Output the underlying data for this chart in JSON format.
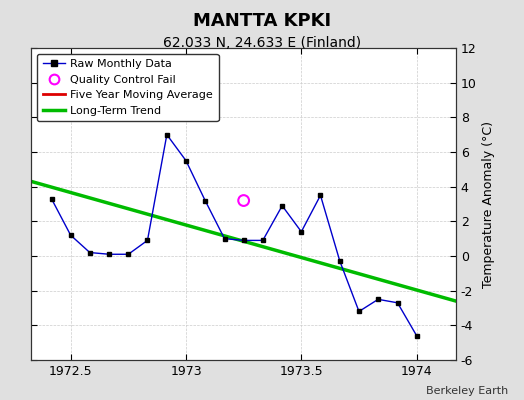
{
  "title": "MANTTA KPKI",
  "subtitle": "62.033 N, 24.633 E (Finland)",
  "watermark": "Berkeley Earth",
  "ylabel": "Temperature Anomaly (°C)",
  "xlim": [
    1972.33,
    1974.17
  ],
  "ylim": [
    -6,
    12
  ],
  "yticks": [
    -6,
    -4,
    -2,
    0,
    2,
    4,
    6,
    8,
    10,
    12
  ],
  "xticks": [
    1972.5,
    1973.0,
    1973.5,
    1974.0
  ],
  "xticklabels": [
    "1972.5",
    "1973",
    "1973.5",
    "1974"
  ],
  "background_color": "#e0e0e0",
  "plot_bg_color": "#ffffff",
  "raw_x": [
    1972.417,
    1972.5,
    1972.583,
    1972.667,
    1972.75,
    1972.833,
    1972.917,
    1973.0,
    1973.083,
    1973.167,
    1973.25,
    1973.333,
    1973.417,
    1973.5,
    1973.583,
    1973.667,
    1973.75,
    1973.833,
    1973.917,
    1974.0
  ],
  "raw_y": [
    3.3,
    1.2,
    0.2,
    0.1,
    0.1,
    0.9,
    7.0,
    5.5,
    3.2,
    1.0,
    0.9,
    0.9,
    2.9,
    1.4,
    3.5,
    -0.3,
    -3.2,
    -2.5,
    -2.7,
    -4.6
  ],
  "qc_fail_x": [
    1973.25
  ],
  "qc_fail_y": [
    3.2
  ],
  "trend_x": [
    1972.33,
    1974.17
  ],
  "trend_y": [
    4.3,
    -2.6
  ],
  "line_color": "#0000cc",
  "marker_color": "#000000",
  "trend_color": "#00bb00",
  "qc_color": "#ff00ff",
  "five_yr_color": "#dd0000",
  "grid_color": "#cccccc",
  "title_fontsize": 13,
  "subtitle_fontsize": 10,
  "tick_fontsize": 9,
  "ylabel_fontsize": 9
}
